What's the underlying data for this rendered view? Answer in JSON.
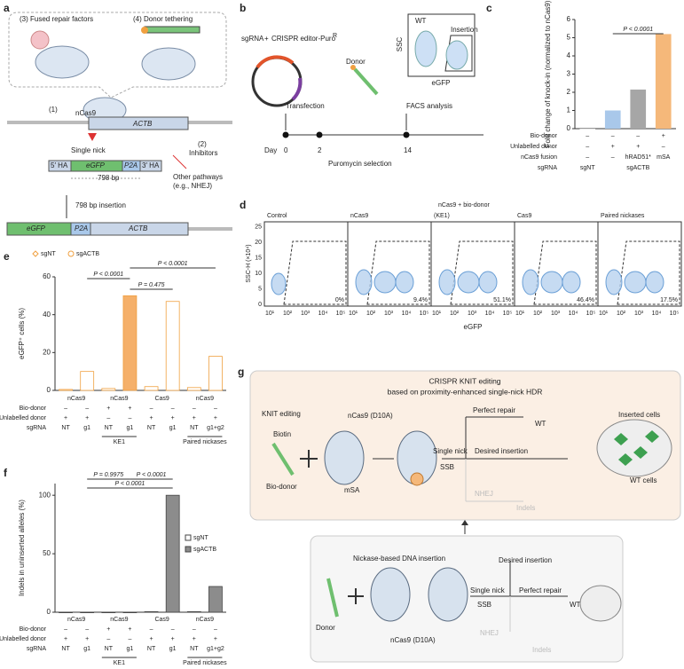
{
  "panel_letters": {
    "a": "a",
    "b": "b",
    "c": "c",
    "d": "d",
    "e": "e",
    "f": "f",
    "g": "g"
  },
  "panel_a": {
    "fused": "(3) Fused repair factors",
    "tether": "(4) Donor tethering",
    "step1": "(1)",
    "ncas9": "nCas9",
    "actb": "ACTB",
    "single_nick": "Single nick",
    "step2": "(2)",
    "inhibitors": "Inhibitors",
    "ha5": "5′ HA",
    "egfp": "eGFP",
    "p2a": "P2A",
    "ha3": "3′ HA",
    "length": "798 bp",
    "other1": "Other pathways",
    "other2": "(e.g., NHEJ)",
    "insertion": "798 bp insertion",
    "egfp2": "eGFP",
    "p2a2": "P2A",
    "actb2": "ACTB"
  },
  "panel_b": {
    "sgrna": "sgRNA",
    "plus": "+",
    "editor": "CRISPR editor-Puro",
    "sup": "R",
    "donor": "Donor",
    "ssc": "SSC",
    "wt": "WT",
    "insertion": "Insertion",
    "egfp": "eGFP",
    "transfection": "Transfection",
    "facs": "FACS analysis",
    "day": "Day",
    "d0": "0",
    "d2": "2",
    "d14": "14",
    "puro": "Puromycin selection"
  },
  "chart_data": [
    {
      "type": "bar",
      "ylabel": "Fold change of knock-in (normalized to nCas9)",
      "values": [
        0,
        1.0,
        2.15,
        5.2
      ],
      "colors": [
        "#dddddd",
        "#a9c8ea",
        "#a6a6a6",
        "#f5b87a"
      ],
      "ylim": [
        0,
        6
      ],
      "yticks": [
        0,
        1,
        2,
        3,
        4,
        5,
        6
      ],
      "rows": [
        {
          "label": "Bio-donor",
          "cells": [
            "–",
            "–",
            "–",
            "+"
          ]
        },
        {
          "label": "Unlabelled donor",
          "cells": [
            "–",
            "+",
            "+",
            "–"
          ]
        },
        {
          "label": "nCas9 fusion",
          "cells": [
            "–",
            "–",
            "hRAD51*",
            "mSA"
          ]
        },
        {
          "label": "sgRNA",
          "cells": [
            "sgNT",
            null,
            "sgACTB",
            null
          ]
        }
      ],
      "annotations": [
        "P < 0.0001"
      ]
    },
    {
      "type": "bar",
      "ylabel": "eGFP⁺ cells (%)",
      "legend": [
        {
          "name": "sgNT",
          "marker": "diamond",
          "color": "#f0a040"
        },
        {
          "name": "sgACTB",
          "marker": "circle",
          "color": "#f0a040"
        }
      ],
      "values": [
        0.5,
        10,
        1,
        50,
        2,
        47,
        1.5,
        18
      ],
      "colors": [
        "#ffffff",
        "#ffffff",
        "#ffffff",
        "#f5b06a",
        "#ffffff",
        "#ffffff",
        "#ffffff",
        "#ffffff"
      ],
      "stroke": "#f0a040",
      "ylim": [
        0,
        60
      ],
      "yticks": [
        0,
        20,
        40,
        60
      ],
      "groups": [
        "nCas9",
        "nCas9",
        "Cas9",
        "nCas9"
      ],
      "rows": [
        {
          "label": "Bio-donor",
          "cells": [
            "–",
            "–",
            "+",
            "+",
            "–",
            "–",
            "–",
            "–"
          ]
        },
        {
          "label": "Unlabelled donor",
          "cells": [
            "+",
            "+",
            "–",
            "–",
            "+",
            "+",
            "+",
            "+"
          ]
        },
        {
          "label": "sgRNA",
          "cells": [
            "NT",
            "g1",
            "NT",
            "g1",
            "NT",
            "g1",
            "NT",
            "g1+g2"
          ]
        }
      ],
      "subgroups": [
        null,
        "KE1",
        null,
        "Paired nickases"
      ],
      "annotations": [
        "P < 0.0001",
        "P = 0.475",
        "P < 0.0001"
      ]
    },
    {
      "type": "bar",
      "ylabel": "Indels in uninserted alleles (%)",
      "legend": [
        {
          "name": "sgNT",
          "marker": "square",
          "color": "#ffffff"
        },
        {
          "name": "sgACTB",
          "marker": "square",
          "color": "#8c8c8c"
        }
      ],
      "values": [
        0,
        0,
        0,
        0,
        0.5,
        100,
        0.5,
        22
      ],
      "colors": [
        "#ffffff",
        "#8c8c8c",
        "#ffffff",
        "#8c8c8c",
        "#ffffff",
        "#8c8c8c",
        "#ffffff",
        "#8c8c8c"
      ],
      "stroke": "#444444",
      "ylim": [
        0,
        110
      ],
      "yticks": [
        0,
        50,
        100
      ],
      "groups": [
        "nCas9",
        "nCas9",
        "Cas9",
        "nCas9"
      ],
      "rows": [
        {
          "label": "Bio-donor",
          "cells": [
            "–",
            "–",
            "+",
            "+",
            "–",
            "–",
            "–",
            "–"
          ]
        },
        {
          "label": "Unlabelled donor",
          "cells": [
            "+",
            "+",
            "–",
            "–",
            "+",
            "+",
            "+",
            "+"
          ]
        },
        {
          "label": "sgRNA",
          "cells": [
            "NT",
            "g1",
            "NT",
            "g1",
            "NT",
            "g1",
            "NT",
            "g1+g2"
          ]
        }
      ],
      "subgroups": [
        null,
        "KE1",
        null,
        "Paired nickases"
      ],
      "annotations": [
        "P = 0.9975",
        "P < 0.0001",
        "P < 0.0001"
      ]
    }
  ],
  "panel_d": {
    "ke1_header": "nCas9 + bio-donor",
    "plots": [
      {
        "name": "Control",
        "pct": "0%"
      },
      {
        "name": "nCas9",
        "pct": "9.4%"
      },
      {
        "name": "(KE1)",
        "pct": "51.1%"
      },
      {
        "name": "Cas9",
        "pct": "46.4%"
      },
      {
        "name": "Paired nickases",
        "pct": "17.5%"
      }
    ],
    "ylabel": "SSC-H (×10⁴)",
    "xlabel": "eGFP",
    "yticks": [
      "0",
      "5",
      "10",
      "15",
      "20",
      "25"
    ],
    "xticks": [
      "10¹",
      "10²",
      "10³",
      "10⁴",
      "10⁵"
    ]
  },
  "panel_g": {
    "title": "CRISPR KNIT editing",
    "subtitle": "based on proximity-enhanced single-nick HDR",
    "knit": "KNIT editing",
    "ncas9": "nCas9 (D10A)",
    "biotin": "Biotin",
    "biodonor": "Bio-donor",
    "msa": "mSA",
    "perfect": "Perfect repair",
    "wt": "WT",
    "nick": "Single nick",
    "ssb": "SSB",
    "desired": "Desired insertion",
    "nhej": "NHEJ",
    "indels": "Indels",
    "inserted_cells": "Inserted cells",
    "wt_cells": "WT cells",
    "lower_title": "Nickase-based DNA insertion",
    "lower_desired": "Desired insertion",
    "lower_nick": "Single nick",
    "lower_ssb": "SSB",
    "lower_perfect": "Perfect repair",
    "lower_wt": "WT",
    "lower_nhej": "NHEJ",
    "lower_indels": "Indels",
    "lower_donor": "Donor",
    "lower_ncas9": "nCas9 (D10A)"
  }
}
